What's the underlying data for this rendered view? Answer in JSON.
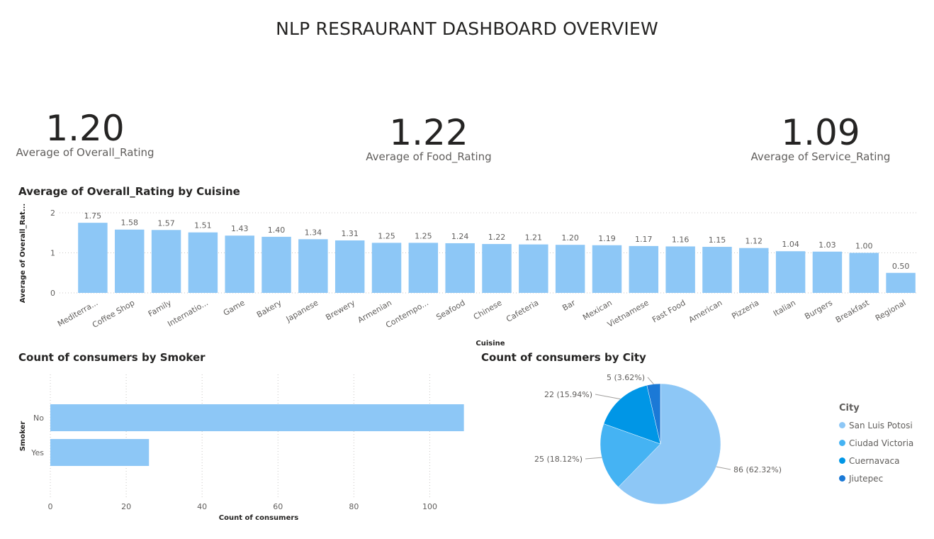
{
  "header": {
    "title": "NLP RESRAURANT DASHBOARD OVERVIEW"
  },
  "kpis": [
    {
      "value": "1.20",
      "label": "Average of Overall_Rating"
    },
    {
      "value": "1.22",
      "label": "Average of Food_Rating"
    },
    {
      "value": "1.09",
      "label": "Average of Service_Rating"
    }
  ],
  "colors": {
    "bar": "#8dc7f6",
    "grid": "#c8c6c4",
    "text": "#605e5c"
  },
  "chart_data": [
    {
      "type": "bar",
      "title": "Average of Overall_Rating by Cuisine",
      "xlabel": "Cuisine",
      "ylabel": "Average of Overall_Rat...",
      "ylim": [
        0,
        2
      ],
      "yticks": [
        0,
        1,
        2
      ],
      "grid": true,
      "categories": [
        "Mediterra...",
        "Coffee Shop",
        "Family",
        "Internatio...",
        "Game",
        "Bakery",
        "Japanese",
        "Brewery",
        "Armenian",
        "Contempo...",
        "Seafood",
        "Chinese",
        "Cafeteria",
        "Bar",
        "Mexican",
        "Vietnamese",
        "Fast Food",
        "American",
        "Pizzeria",
        "Italian",
        "Burgers",
        "Breakfast",
        "Regional"
      ],
      "values": [
        1.75,
        1.58,
        1.57,
        1.51,
        1.43,
        1.4,
        1.34,
        1.31,
        1.25,
        1.25,
        1.24,
        1.22,
        1.21,
        1.2,
        1.19,
        1.17,
        1.16,
        1.15,
        1.12,
        1.04,
        1.03,
        1.0,
        0.5
      ],
      "labels": [
        "1.75",
        "1.58",
        "1.57",
        "1.51",
        "1.43",
        "1.40",
        "1.34",
        "1.31",
        "1.25",
        "1.25",
        "1.24",
        "1.22",
        "1.21",
        "1.20",
        "1.19",
        "1.17",
        "1.16",
        "1.15",
        "1.12",
        "1.04",
        "1.03",
        "1.00",
        "0.50"
      ]
    },
    {
      "type": "bar",
      "orientation": "horizontal",
      "title": "Count of consumers by Smoker",
      "xlabel": "Count of consumers",
      "ylabel": "Smoker",
      "xlim": [
        0,
        110
      ],
      "xticks": [
        0,
        20,
        40,
        60,
        80,
        100
      ],
      "grid": true,
      "categories": [
        "No",
        "Yes"
      ],
      "values": [
        109,
        26
      ]
    },
    {
      "type": "pie",
      "title": "Count of consumers by City",
      "legend_title": "City",
      "legend_position": "right",
      "categories": [
        "San Luis Potosi",
        "Ciudad Victoria",
        "Cuernavaca",
        "Jiutepec"
      ],
      "values": [
        86,
        25,
        22,
        5
      ],
      "labels": [
        "86 (62.32%)",
        "25 (18.12%)",
        "22 (15.94%)",
        "5 (3.62%)"
      ],
      "colors": [
        "#8dc7f6",
        "#45b3f3",
        "#0096e6",
        "#1b79d6"
      ]
    }
  ]
}
